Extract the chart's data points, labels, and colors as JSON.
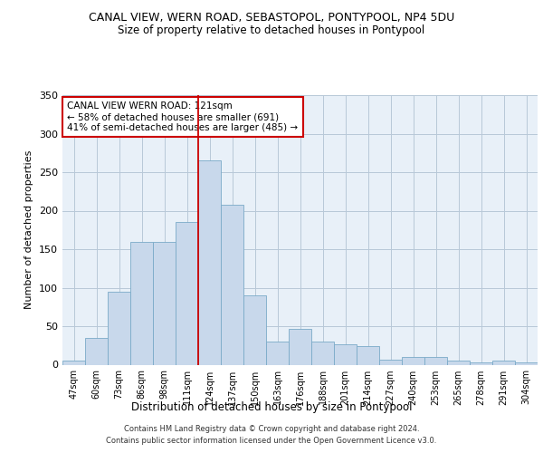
{
  "title_line1": "CANAL VIEW, WERN ROAD, SEBASTOPOL, PONTYPOOL, NP4 5DU",
  "title_line2": "Size of property relative to detached houses in Pontypool",
  "xlabel": "Distribution of detached houses by size in Pontypool",
  "ylabel": "Number of detached properties",
  "categories": [
    "47sqm",
    "60sqm",
    "73sqm",
    "86sqm",
    "98sqm",
    "111sqm",
    "124sqm",
    "137sqm",
    "150sqm",
    "163sqm",
    "176sqm",
    "188sqm",
    "201sqm",
    "214sqm",
    "227sqm",
    "240sqm",
    "253sqm",
    "265sqm",
    "278sqm",
    "291sqm",
    "304sqm"
  ],
  "values": [
    5,
    35,
    95,
    160,
    160,
    185,
    265,
    208,
    90,
    30,
    47,
    30,
    27,
    24,
    7,
    10,
    10,
    5,
    3,
    5,
    3
  ],
  "bar_color": "#c8d8eb",
  "bar_edge_color": "#7aaac8",
  "grid_color": "#b8c8d8",
  "background_color": "#e8f0f8",
  "vline_color": "#cc0000",
  "annotation_text": "CANAL VIEW WERN ROAD: 121sqm\n← 58% of detached houses are smaller (691)\n41% of semi-detached houses are larger (485) →",
  "annotation_box_color": "#ffffff",
  "annotation_box_edge": "#cc0000",
  "ylim": [
    0,
    350
  ],
  "yticks": [
    0,
    50,
    100,
    150,
    200,
    250,
    300,
    350
  ],
  "footer_line1": "Contains HM Land Registry data © Crown copyright and database right 2024.",
  "footer_line2": "Contains public sector information licensed under the Open Government Licence v3.0."
}
